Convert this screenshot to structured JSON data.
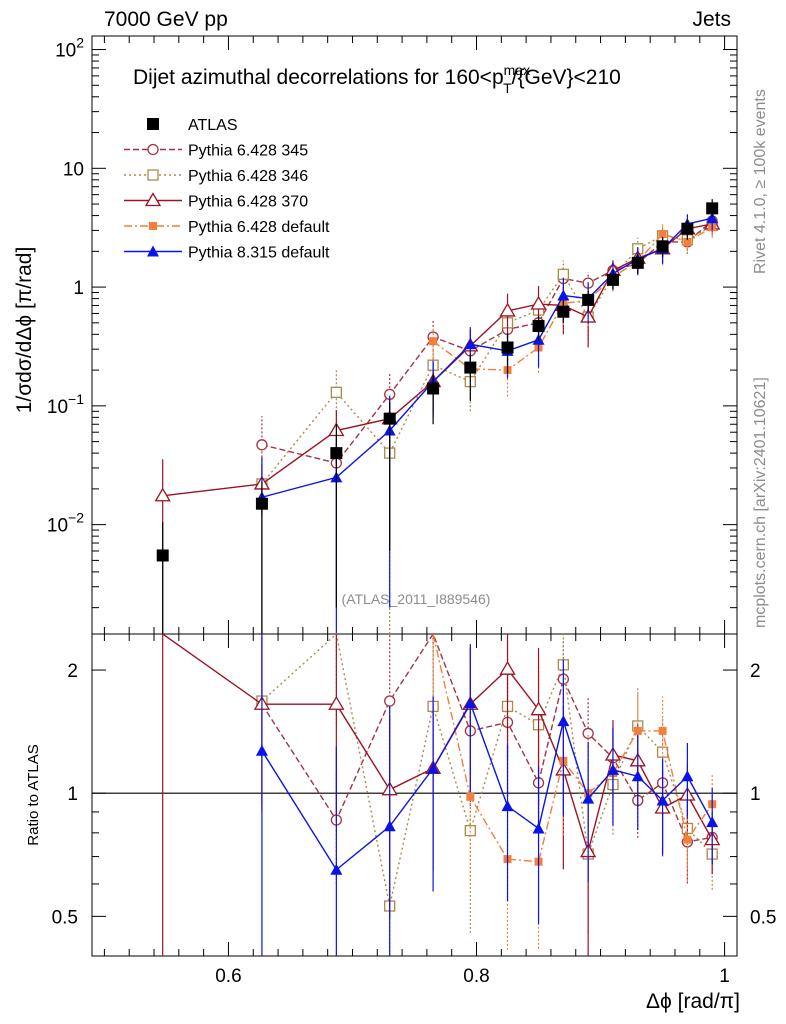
{
  "header": {
    "left": "7000 GeV pp",
    "right": "Jets"
  },
  "chart_data": {
    "type": "line",
    "title_parts": {
      "pre": "Dijet azimuthal decorrelations for 160<p",
      "sup": "max",
      "sub": "T",
      "post": "/{GeV}<210"
    },
    "xlabel": "Δϕ [rad/π]",
    "ylabel": "1/σdσ/dΔϕ [π/rad]",
    "ratio_ylabel": "Ratio to ATLAS",
    "xlim": [
      0.49,
      1.01
    ],
    "ylim": [
      0.0012,
      130
    ],
    "ratio_ylim": [
      0.4,
      2.45
    ],
    "x_ticks": [
      {
        "value": 0.6,
        "label": "0.6"
      },
      {
        "value": 0.8,
        "label": "0.8"
      },
      {
        "value": 1.0,
        "label": "1"
      }
    ],
    "y_ticks": [
      {
        "value": 0.01,
        "base": "10",
        "exp": "−2"
      },
      {
        "value": 0.1,
        "base": "10",
        "exp": "−1"
      },
      {
        "value": 1,
        "base": "1",
        "exp": ""
      },
      {
        "value": 10,
        "base": "10",
        "exp": ""
      },
      {
        "value": 100,
        "base": "10",
        "exp": "2"
      }
    ],
    "ratio_ticks": [
      {
        "value": 0.5,
        "label": "0.5"
      },
      {
        "value": 1,
        "label": "1"
      },
      {
        "value": 2,
        "label": "2"
      }
    ],
    "reference_label": "(ATLAS_2011_I889546)",
    "side_text_top": "Rivet 4.1.0, ≥ 100k events",
    "side_text_bottom": "mcplots.cern.ch [arXiv:2401.10621]",
    "series": [
      {
        "name": "ATLAS",
        "color": "#000000",
        "marker": "square-filled",
        "dash": "none",
        "x": [
          0.547,
          0.627,
          0.687,
          0.73,
          0.765,
          0.795,
          0.825,
          0.85,
          0.87,
          0.89,
          0.91,
          0.93,
          0.95,
          0.97,
          0.99
        ],
        "y": [
          0.0055,
          0.015,
          0.04,
          0.078,
          0.14,
          0.21,
          0.31,
          0.47,
          0.62,
          0.78,
          1.15,
          1.6,
          2.2,
          3.1,
          4.6
        ],
        "ratio": [
          1,
          1,
          1,
          1,
          1,
          1,
          1,
          1,
          1,
          1,
          1,
          1,
          1,
          1,
          1
        ],
        "err_lo": [
          0.0055,
          0.014,
          0.038,
          0.072,
          0.07,
          0.1,
          0.12,
          0.12,
          0.12,
          0.15,
          0.2,
          0.3,
          0.4,
          0.6,
          0.7
        ],
        "err_hi": [
          0.005,
          0.008,
          0.03,
          0.03,
          0.05,
          0.06,
          0.09,
          0.1,
          0.15,
          0.15,
          0.25,
          0.3,
          0.4,
          0.6,
          0.9
        ]
      },
      {
        "name": "Pythia 6.428 345",
        "color": "#a23344",
        "marker": "circle-open",
        "dash": "6,3",
        "x": [
          0.627,
          0.687,
          0.73,
          0.765,
          0.795,
          0.825,
          0.85,
          0.87,
          0.89,
          0.91,
          0.93,
          0.95,
          0.97,
          0.99
        ],
        "y": [
          0.047,
          0.033,
          0.125,
          0.38,
          0.29,
          0.44,
          0.5,
          1.18,
          1.08,
          1.38,
          1.58,
          2.4,
          2.4,
          3.6
        ],
        "ratio": [
          1.65,
          0.86,
          1.68,
          2.5,
          1.42,
          1.49,
          1.06,
          1.9,
          1.4,
          1.22,
          0.96,
          1.06,
          0.76,
          0.78
        ],
        "err_lo": [
          0.02,
          0.01,
          0.06,
          0.15,
          0.1,
          0.15,
          0.15,
          0.3,
          0.25,
          0.25,
          0.3,
          0.4,
          0.5,
          0.5
        ],
        "err_hi": [
          0.035,
          0.01,
          0.06,
          0.15,
          0.1,
          0.15,
          0.15,
          0.3,
          0.25,
          0.25,
          0.3,
          0.4,
          0.5,
          0.5
        ]
      },
      {
        "name": "Pythia 6.428 346",
        "color": "#ac8a4a",
        "marker": "square-open",
        "dash": "2,3",
        "x": [
          0.627,
          0.687,
          0.73,
          0.765,
          0.795,
          0.825,
          0.85,
          0.87,
          0.89,
          0.91,
          0.93,
          0.95,
          0.97,
          0.99
        ],
        "y": [
          0.022,
          0.13,
          0.04,
          0.22,
          0.16,
          0.5,
          0.64,
          1.28,
          0.56,
          1.22,
          2.1,
          2.7,
          2.5,
          3.3
        ],
        "ratio": [
          1.68,
          3.2,
          0.53,
          1.63,
          0.81,
          1.63,
          1.47,
          2.06,
          0.71,
          1.05,
          1.46,
          1.26,
          0.82,
          0.71
        ],
        "err_lo": [
          0.01,
          0.07,
          0.039,
          0.09,
          0.07,
          0.2,
          0.25,
          0.4,
          0.2,
          0.3,
          0.5,
          0.6,
          0.5,
          0.6
        ],
        "err_hi": [
          0.01,
          0.07,
          0.039,
          0.09,
          0.07,
          0.2,
          0.25,
          0.4,
          0.2,
          0.3,
          0.5,
          0.6,
          0.5,
          0.6
        ]
      },
      {
        "name": "Pythia 6.428 370",
        "color": "#9c1224",
        "marker": "triangle-open",
        "dash": "none",
        "x": [
          0.547,
          0.627,
          0.687,
          0.73,
          0.765,
          0.795,
          0.825,
          0.85,
          0.87,
          0.89,
          0.91,
          0.93,
          0.95,
          0.97,
          0.99
        ],
        "y": [
          0.0175,
          0.022,
          0.062,
          0.078,
          0.16,
          0.32,
          0.63,
          0.72,
          0.7,
          0.56,
          1.38,
          1.75,
          2.1,
          3.1,
          3.4
        ],
        "ratio": [
          3.1,
          1.65,
          1.65,
          1.02,
          1.15,
          1.65,
          2.01,
          1.6,
          1.14,
          0.72,
          1.24,
          1.2,
          0.92,
          0.99,
          0.77
        ],
        "err_lo": [
          0.0175,
          0.01,
          0.03,
          0.04,
          0.07,
          0.12,
          0.25,
          0.3,
          0.3,
          0.25,
          0.3,
          0.4,
          0.5,
          0.6,
          0.6
        ],
        "err_hi": [
          0.018,
          0.01,
          0.03,
          0.04,
          0.07,
          0.12,
          0.25,
          0.3,
          0.3,
          0.25,
          0.3,
          0.4,
          0.5,
          0.6,
          0.6
        ]
      },
      {
        "name": "Pythia 6.428 default",
        "color": "#f47e3a",
        "marker": "square-filled-small",
        "dash": "8,3,2,3",
        "x": [
          0.765,
          0.795,
          0.825,
          0.85,
          0.87,
          0.89,
          0.91,
          0.93,
          0.95,
          0.97,
          0.99
        ],
        "y": [
          0.35,
          0.205,
          0.2,
          0.31,
          0.73,
          0.77,
          1.22,
          1.65,
          2.8,
          2.4,
          3.2
        ],
        "ratio": [
          2.5,
          0.98,
          0.69,
          0.68,
          1.2,
          1.0,
          1.12,
          1.42,
          1.42,
          0.77,
          0.94
        ],
        "err_lo": [
          0.12,
          0.08,
          0.08,
          0.12,
          0.25,
          0.3,
          0.3,
          0.4,
          0.6,
          0.5,
          0.6
        ],
        "err_hi": [
          0.12,
          0.08,
          0.08,
          0.12,
          0.25,
          0.3,
          0.3,
          0.4,
          0.6,
          0.5,
          0.6
        ]
      },
      {
        "name": "Pythia 8.315 default",
        "color": "#0a14e6",
        "marker": "triangle-filled",
        "dash": "none",
        "x": [
          0.627,
          0.687,
          0.73,
          0.765,
          0.795,
          0.825,
          0.85,
          0.87,
          0.89,
          0.91,
          0.93,
          0.95,
          0.97,
          0.99
        ],
        "y": [
          0.017,
          0.025,
          0.062,
          0.16,
          0.33,
          0.29,
          0.36,
          0.85,
          0.8,
          1.3,
          1.72,
          2.1,
          3.4,
          3.8
        ],
        "ratio": [
          1.27,
          0.65,
          0.83,
          1.15,
          1.66,
          0.93,
          0.82,
          1.5,
          0.97,
          1.14,
          1.1,
          0.96,
          1.1,
          0.85
        ],
        "err_lo": [
          0.017,
          0.025,
          0.06,
          0.08,
          0.13,
          0.12,
          0.15,
          0.35,
          0.3,
          0.35,
          0.45,
          0.55,
          0.7,
          0.8
        ],
        "err_hi": [
          0.02,
          0.025,
          0.06,
          0.08,
          0.13,
          0.12,
          0.15,
          0.35,
          0.3,
          0.35,
          0.45,
          0.55,
          0.7,
          0.8
        ]
      }
    ]
  }
}
